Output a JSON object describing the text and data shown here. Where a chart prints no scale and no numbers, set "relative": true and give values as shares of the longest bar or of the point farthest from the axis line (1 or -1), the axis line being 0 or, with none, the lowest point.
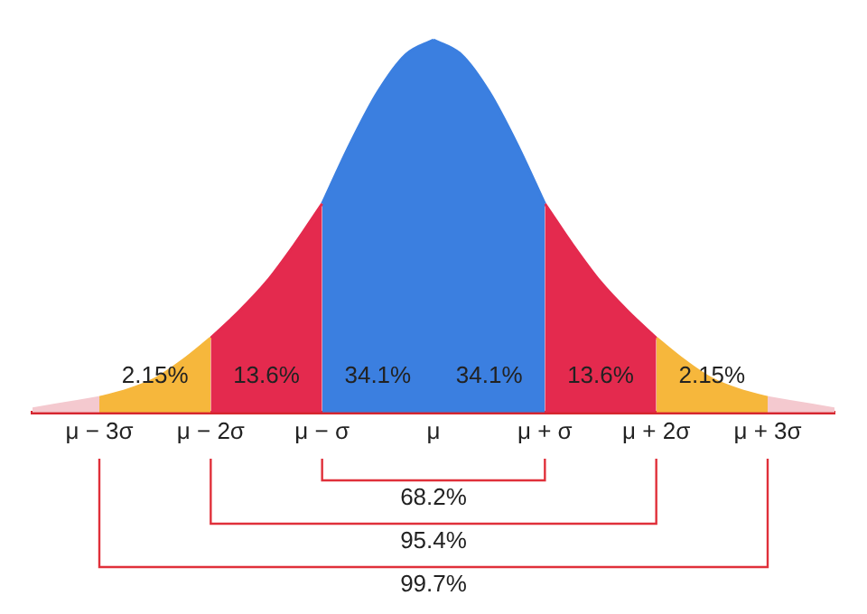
{
  "chart_data": {
    "type": "area",
    "relative": true,
    "xlim": [
      -3.6,
      3.6
    ],
    "xticks": [
      {
        "value": -3,
        "label": "μ − 3σ"
      },
      {
        "value": -2,
        "label": "μ − 2σ"
      },
      {
        "value": -1,
        "label": "μ − σ"
      },
      {
        "value": 0,
        "label": "μ"
      },
      {
        "value": 1,
        "label": "μ + σ"
      },
      {
        "value": 2,
        "label": "μ + 2σ"
      },
      {
        "value": 3,
        "label": "μ + 3σ"
      }
    ],
    "series": [
      {
        "color": "#f4c9cf",
        "x": [
          -3.6,
          -3.4,
          -3.2,
          -3
        ],
        "values": [
          0.01,
          0.02,
          0.03,
          0.04
        ]
      },
      {
        "color": "#f6b73c",
        "x": [
          -3,
          -2.75,
          -2.5,
          -2.25,
          -2
        ],
        "values": [
          0.04,
          0.06,
          0.09,
          0.14,
          0.2
        ]
      },
      {
        "color": "#e42a4e",
        "x": [
          -2,
          -1.75,
          -1.5,
          -1.25,
          -1
        ],
        "values": [
          0.2,
          0.27,
          0.35,
          0.45,
          0.56
        ]
      },
      {
        "color": "#3b7fe0",
        "x": [
          -1,
          -0.75,
          -0.5,
          -0.25,
          0
        ],
        "values": [
          0.56,
          0.72,
          0.86,
          0.96,
          1
        ]
      },
      {
        "color": "#3b7fe0",
        "x": [
          0,
          0.25,
          0.5,
          0.75,
          1
        ],
        "values": [
          1,
          0.96,
          0.86,
          0.72,
          0.56
        ]
      },
      {
        "color": "#e42a4e",
        "x": [
          1,
          1.25,
          1.5,
          1.75,
          2
        ],
        "values": [
          0.56,
          0.45,
          0.35,
          0.27,
          0.2
        ]
      },
      {
        "color": "#f6b73c",
        "x": [
          2,
          2.25,
          2.5,
          2.75,
          3
        ],
        "values": [
          0.2,
          0.14,
          0.09,
          0.06,
          0.04
        ]
      },
      {
        "color": "#f4c9cf",
        "x": [
          3,
          3.2,
          3.4,
          3.6
        ],
        "values": [
          0.04,
          0.03,
          0.02,
          0.01
        ]
      }
    ],
    "annotations": [
      "2.15%",
      "13.6%",
      "34.1%",
      "34.1%",
      "13.6%",
      "2.15%",
      "68.2%",
      "95.4%",
      "99.7%"
    ],
    "legend": false,
    "grid": false
  }
}
